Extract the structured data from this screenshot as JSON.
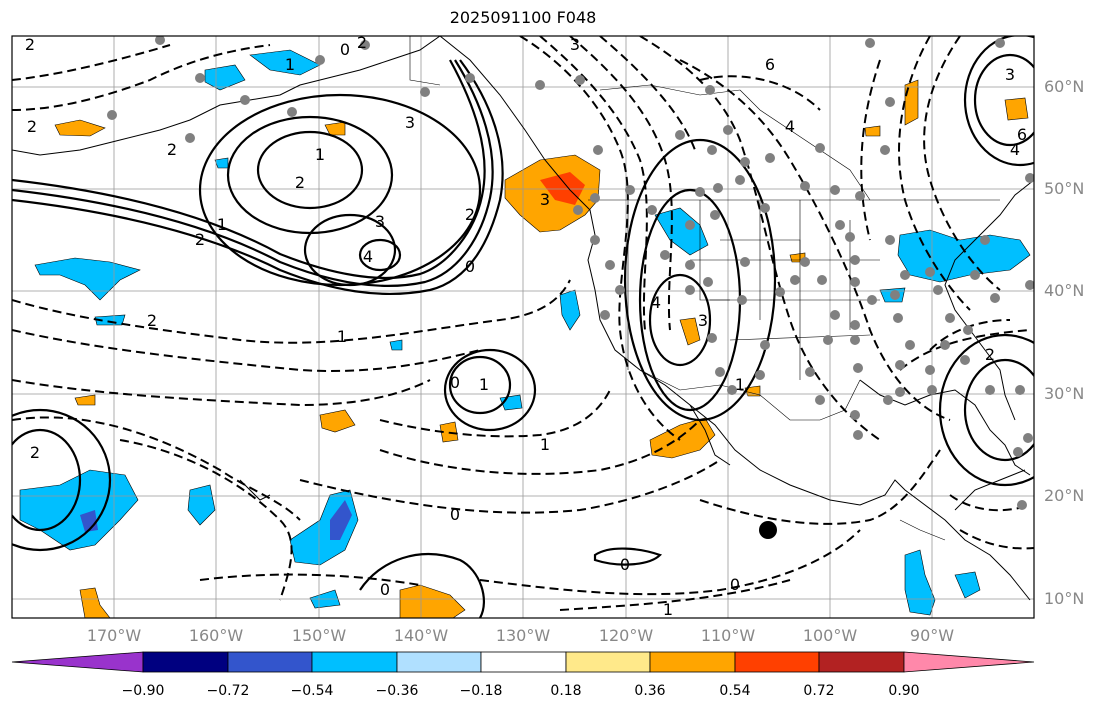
{
  "title": "2025091100 F048",
  "lat_labels": [
    "60°N",
    "50°N",
    "40°N",
    "30°N",
    "20°N",
    "10°N"
  ],
  "lon_labels": [
    "170°W",
    "160°W",
    "150°W",
    "140°W",
    "130°W",
    "120°W",
    "110°W",
    "100°W",
    "90°W"
  ],
  "colorbar": {
    "tick_labels": [
      "−0.90",
      "−0.72",
      "−0.54",
      "−0.36",
      "−0.18",
      "0.18",
      "0.36",
      "0.54",
      "0.72",
      "0.90"
    ],
    "colors": [
      "#9933cc",
      "#000080",
      "#3355cc",
      "#00bfff",
      "#b0e0ff",
      "#ffffff",
      "#ffe98a",
      "#ffa500",
      "#ff4000",
      "#b22222",
      "#ff88aa"
    ]
  },
  "contour_labels": [
    "2",
    "0",
    "2",
    "1",
    "3",
    "3",
    "6",
    "4",
    "3",
    "1",
    "2",
    "3",
    "4",
    "1",
    "2",
    "3",
    "4",
    "3",
    "2",
    "0",
    "1",
    "2",
    "2",
    "1",
    "0",
    "1",
    "0",
    "0",
    "1",
    "0",
    "2",
    "2",
    "0",
    "1",
    "2",
    "6",
    "4"
  ],
  "colors": {
    "contour": "#000000",
    "grid": "#999999",
    "station": "#808080",
    "coast": "#000000"
  }
}
